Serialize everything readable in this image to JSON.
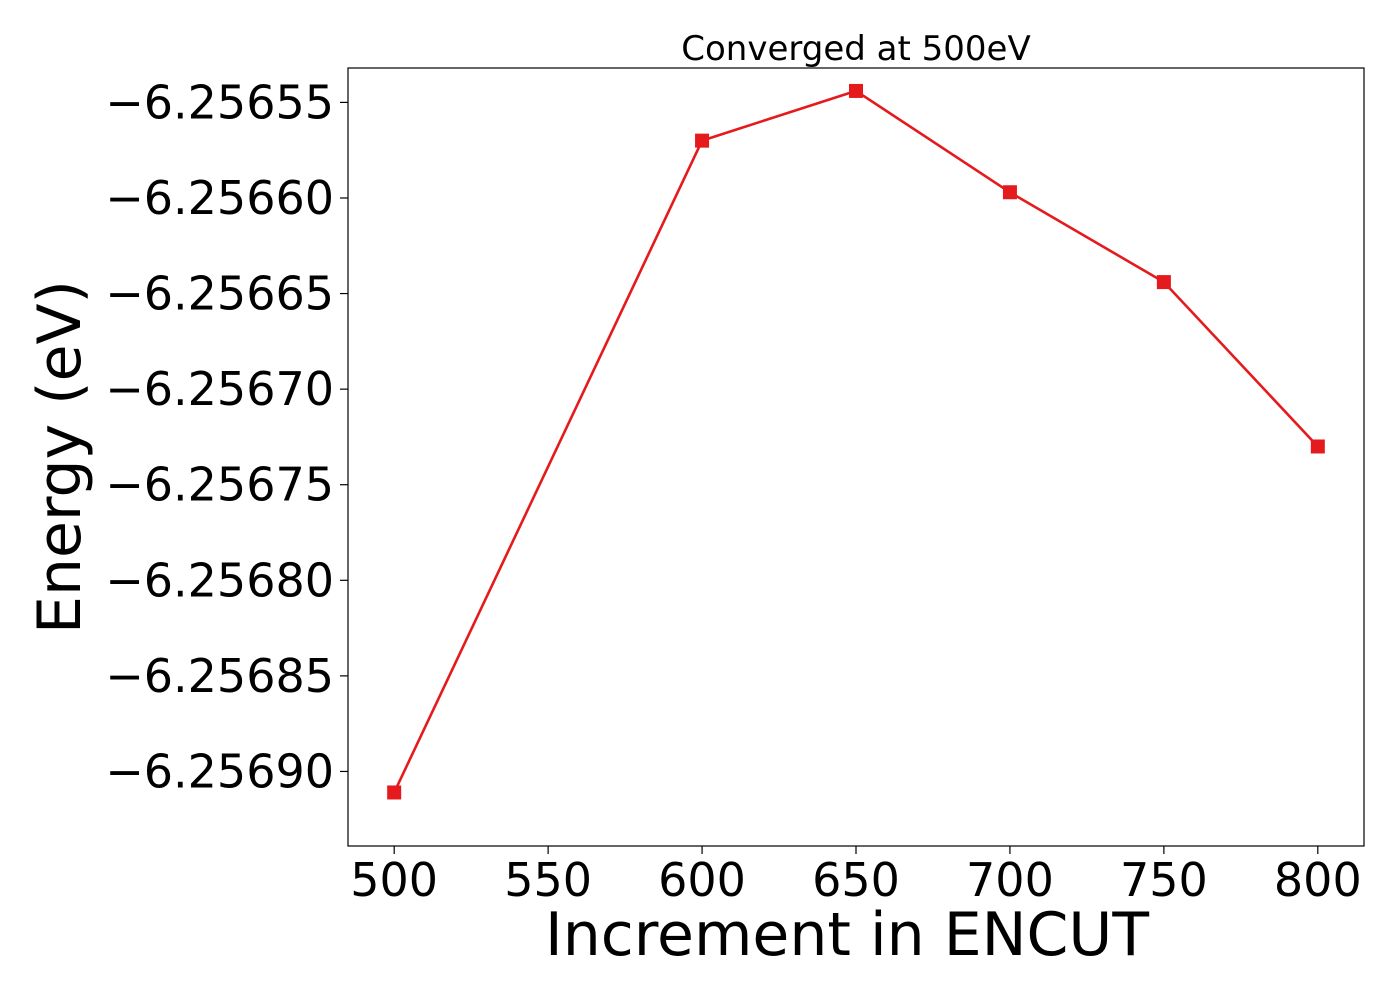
{
  "chart_data": {
    "type": "line",
    "title": "Converged at 500eV",
    "xlabel": "Increment in ENCUT",
    "ylabel": "Energy (eV)",
    "x": [
      500,
      600,
      650,
      700,
      750,
      800
    ],
    "series": [
      {
        "values": [
          -6.256911,
          -6.25657,
          -6.256544,
          -6.256597,
          -6.256644,
          -6.25673
        ],
        "color": "#e41a1c",
        "marker": "square"
      }
    ],
    "xticks": [
      500,
      550,
      600,
      650,
      700,
      750,
      800
    ],
    "xtick_labels": [
      "500",
      "550",
      "600",
      "650",
      "700",
      "750",
      "800"
    ],
    "yticks": [
      -6.25655,
      -6.2566,
      -6.25665,
      -6.2567,
      -6.25675,
      -6.2568,
      -6.25685,
      -6.2569
    ],
    "ytick_labels": [
      "−6.25655",
      "−6.25660",
      "−6.25665",
      "−6.25670",
      "−6.25675",
      "−6.25680",
      "−6.25685",
      "−6.25690"
    ],
    "xlim": [
      485,
      815
    ],
    "ylim": [
      -6.256939,
      -6.256532
    ],
    "grid": false,
    "legend": "none"
  }
}
